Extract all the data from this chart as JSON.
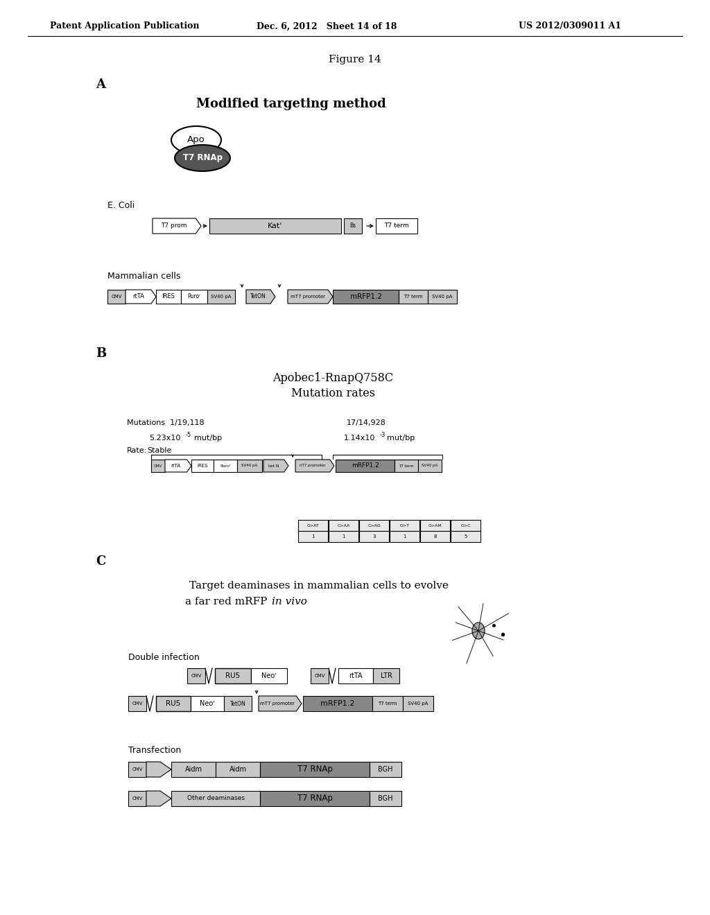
{
  "header_left": "Patent Application Publication",
  "header_mid": "Dec. 6, 2012   Sheet 14 of 18",
  "header_right": "US 2012/0309011 A1",
  "figure_label": "Figure 14",
  "section_A_label": "A",
  "section_A_title": "Modified targeting method",
  "ecoli_label": "E. Coli",
  "mammalian_label": "Mammalian cells",
  "section_B_label": "B",
  "section_B_title1": "Apobec1-RnapQ758C",
  "section_B_title2": "Mutation rates",
  "mutations_left": "Mutations  1/19,118",
  "mutations_right": "17/14,928",
  "rate_left": "5.23x10⁻⁵mut/bp",
  "rate_right": "1.14x10⁻³mut/bp",
  "rate_label": "Rate:",
  "stable_label": "Stable",
  "section_C_label": "C",
  "section_C_title1": "Target deaminases in mammalian cells to evolve",
  "section_C_title2": "a far red mRFP ",
  "section_C_title2_italic": "in vivo",
  "double_infection_label": "Double infection",
  "transfection_label": "Transfection",
  "bg_color": "#ffffff",
  "box_light": "#d0d0d0",
  "box_medium": "#b0b0b0",
  "box_dark": "#808080",
  "text_color": "#000000"
}
